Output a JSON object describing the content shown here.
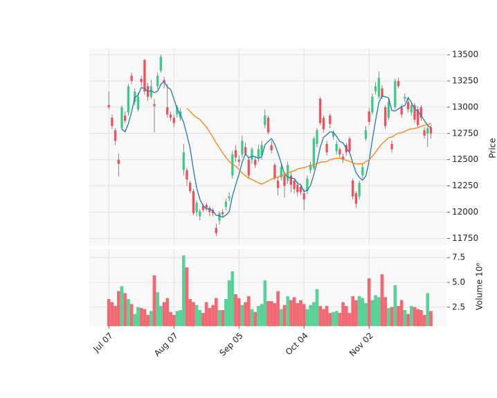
{
  "chart_data": {
    "type": "candlestick",
    "open": [
      13020,
      12900,
      12780,
      12500,
      12800,
      12920,
      12950,
      13300,
      13050,
      12980,
      13270,
      13450,
      13200,
      13100,
      13030,
      13200,
      13350,
      13260,
      13000,
      12930,
      12900,
      12930,
      12900,
      12400,
      12400,
      12280,
      12200,
      12000,
      11960,
      12060,
      12070,
      12040,
      12020,
      11850,
      11920,
      12000,
      12050,
      12130,
      12350,
      12590,
      12500,
      12550,
      12620,
      12500,
      12500,
      12500,
      12520,
      12540,
      12830,
      12900,
      12640,
      12450,
      12300,
      12330,
      12350,
      12300,
      12350,
      12300,
      12260,
      12240,
      12180,
      12200,
      12400,
      12420,
      12650,
      13080,
      12900,
      12650,
      12920,
      12720,
      12580,
      12600,
      12530,
      12640,
      12700,
      12300,
      12180,
      12150,
      12350,
      12700,
      12960,
      12950,
      13150,
      13100,
      13180,
      13000,
      12900,
      12650,
      13000,
      13250,
      13000,
      13080,
      13050,
      12950,
      13020,
      12980,
      13000,
      12780,
      12750,
      12810
    ],
    "high": [
      13150,
      12930,
      12800,
      12560,
      13020,
      12960,
      13220,
      13330,
      13180,
      13140,
      13300,
      13460,
      13230,
      13260,
      13080,
      13330,
      13500,
      13290,
      13220,
      12960,
      12930,
      13020,
      12990,
      12650,
      12420,
      12300,
      12220,
      12110,
      12030,
      12080,
      12090,
      12060,
      12040,
      11890,
      12010,
      12030,
      12130,
      12190,
      12580,
      12640,
      12540,
      12730,
      12660,
      12520,
      12620,
      12530,
      12640,
      12680,
      12980,
      12920,
      12680,
      12470,
      12330,
      12460,
      12380,
      12480,
      12380,
      12320,
      12290,
      12270,
      12220,
      12350,
      12480,
      12720,
      12800,
      13100,
      12920,
      12680,
      12940,
      12780,
      12680,
      12620,
      12560,
      12660,
      12720,
      12320,
      12200,
      12300,
      12460,
      12820,
      12990,
      13130,
      13240,
      13340,
      13210,
      13020,
      13080,
      12680,
      13270,
      13280,
      13030,
      13130,
      13080,
      13050,
      13040,
      13010,
      13020,
      12810,
      12830,
      12830
    ],
    "low": [
      12980,
      12790,
      12640,
      12340,
      12780,
      12850,
      12920,
      13220,
      13020,
      12960,
      13200,
      13120,
      13060,
      13080,
      12760,
      13170,
      13330,
      13180,
      12900,
      12870,
      12810,
      12900,
      12870,
      12350,
      12250,
      12180,
      11970,
      11960,
      11920,
      12000,
      12010,
      11960,
      11960,
      11770,
      11880,
      11950,
      12020,
      12100,
      12320,
      12480,
      12440,
      12520,
      12540,
      12320,
      12460,
      12420,
      12480,
      12500,
      12800,
      12740,
      12560,
      12300,
      12160,
      12300,
      12140,
      12270,
      12190,
      12180,
      12150,
      12160,
      12020,
      12170,
      12370,
      12400,
      12620,
      12830,
      12760,
      12540,
      12800,
      12690,
      12550,
      12520,
      12470,
      12540,
      12560,
      12120,
      12040,
      12120,
      12320,
      12680,
      12830,
      12930,
      13120,
      13080,
      13080,
      12790,
      12880,
      12570,
      12980,
      13180,
      12900,
      13050,
      12950,
      12920,
      12850,
      12800,
      12870,
      12700,
      12620,
      12700
    ],
    "close": [
      13000,
      12820,
      12680,
      12460,
      13000,
      12870,
      13200,
      13250,
      13150,
      13100,
      13240,
      13150,
      13100,
      13200,
      13010,
      13300,
      13480,
      13240,
      12930,
      12900,
      12850,
      13000,
      12960,
      12570,
      12310,
      12200,
      11990,
      12090,
      12010,
      12020,
      12040,
      12000,
      11990,
      11800,
      11990,
      11980,
      12100,
      12150,
      12550,
      12520,
      12480,
      12680,
      12560,
      12350,
      12600,
      12450,
      12600,
      12640,
      12920,
      12760,
      12590,
      12320,
      12230,
      12430,
      12250,
      12450,
      12260,
      12220,
      12190,
      12190,
      12120,
      12320,
      12450,
      12700,
      12780,
      12850,
      12790,
      12570,
      12840,
      12760,
      12650,
      12550,
      12500,
      12570,
      12580,
      12150,
      12080,
      12280,
      12430,
      12780,
      12860,
      13100,
      13200,
      13280,
      13100,
      12820,
      13050,
      12600,
      13250,
      13200,
      12930,
      13100,
      12980,
      13020,
      12880,
      12830,
      12900,
      12730,
      12800,
      12750
    ],
    "volume": [
      3.3,
      3.0,
      2.6,
      4.1,
      4.6,
      3.9,
      3.3,
      2.8,
      1.8,
      2.5,
      2.4,
      2.3,
      1.7,
      2.1,
      5.7,
      4.0,
      2.6,
      3.0,
      3.4,
      2.0,
      1.7,
      2.1,
      2.2,
      7.7,
      6.5,
      3.3,
      3.0,
      2.7,
      2.2,
      1.9,
      3.0,
      2.4,
      2.7,
      3.4,
      2.2,
      2.2,
      3.3,
      5.2,
      6.1,
      3.8,
      3.4,
      2.7,
      3.0,
      3.6,
      2.3,
      2.0,
      2.6,
      2.8,
      5.2,
      3.1,
      3.1,
      2.9,
      4.1,
      2.3,
      2.7,
      3.6,
      3.2,
      3.5,
      2.9,
      3.2,
      2.8,
      2.3,
      2.7,
      3.0,
      4.3,
      2.6,
      2.3,
      2.6,
      1.9,
      2.0,
      2.1,
      1.9,
      3.0,
      2.6,
      1.9,
      3.6,
      3.2,
      3.6,
      3.4,
      2.9,
      5.4,
      3.2,
      3.7,
      3.5,
      5.8,
      3.5,
      2.4,
      2.5,
      4.7,
      2.6,
      3.2,
      2.2,
      1.8,
      2.6,
      2.5,
      2.3,
      2.2,
      1.7,
      3.9,
      2.1
    ],
    "up_color": "#3dca86",
    "down_color": "#f0505a",
    "mav": [
      5,
      25
    ],
    "mav_colors": [
      "#1f77b4",
      "#ff7f0e"
    ],
    "xlim": [
      -6,
      104
    ],
    "xticks": [
      {
        "value": 0,
        "label": "Jul 07"
      },
      {
        "value": 20,
        "label": "Aug 07"
      },
      {
        "value": 40,
        "label": "Sep 05"
      },
      {
        "value": 60,
        "label": "Oct 04"
      },
      {
        "value": 80,
        "label": "Nov 02"
      }
    ],
    "ylim": [
      11680,
      13560
    ],
    "yticks": [
      11750,
      12000,
      12250,
      12500,
      12750,
      13000,
      13250,
      13500
    ],
    "ylabel": "Price",
    "volume_ylim": [
      0.6,
      8.35
    ],
    "volume_yticks": [
      2.5,
      {
        "value": 5,
        "label": "5.0"
      },
      7.5
    ],
    "volume_ylabel": "Volume  10⁶",
    "grid": true
  }
}
